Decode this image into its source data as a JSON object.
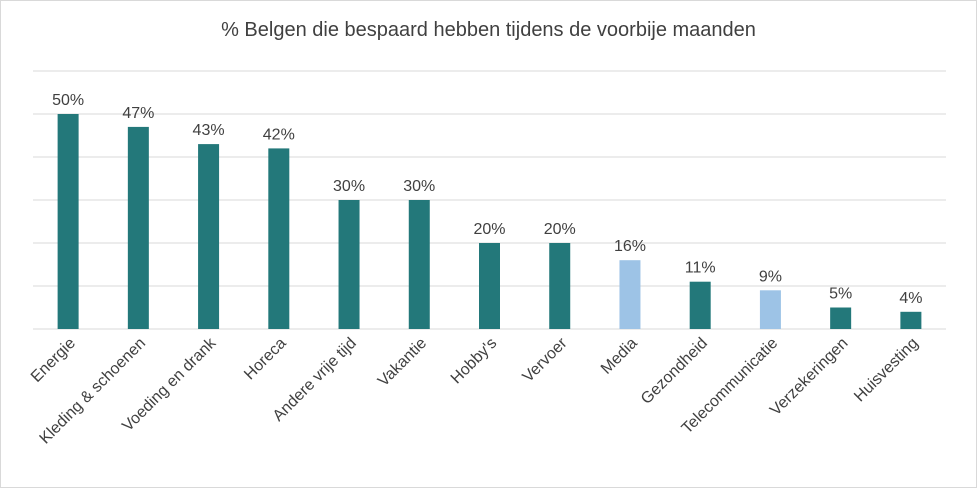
{
  "chart_data": {
    "type": "bar",
    "title": "% Belgen die bespaard hebben tijdens de voorbije maanden",
    "xlabel": "",
    "ylabel": "",
    "ylim": [
      0,
      60
    ],
    "grid": true,
    "categories": [
      "Energie",
      "Kleding & schoenen",
      "Voeding en drank",
      "Horeca",
      "Andere vrije tijd",
      "Vakantie",
      "Hobby's",
      "Vervoer",
      "Media",
      "Gezondheid",
      "Telecommunicatie",
      "Verzekeringen",
      "Huisvesting"
    ],
    "values": [
      50,
      47,
      43,
      42,
      30,
      30,
      20,
      20,
      16,
      11,
      9,
      5,
      4
    ],
    "value_labels": [
      "50%",
      "47%",
      "43%",
      "42%",
      "30%",
      "30%",
      "20%",
      "20%",
      "16%",
      "11%",
      "9%",
      "5%",
      "4%"
    ],
    "highlighted": [
      "Media",
      "Telecommunicatie"
    ],
    "colors": {
      "primary": "#23787a",
      "highlight": "#9dc3e6",
      "grid": "#d9d9d9",
      "text": "#404040"
    }
  }
}
